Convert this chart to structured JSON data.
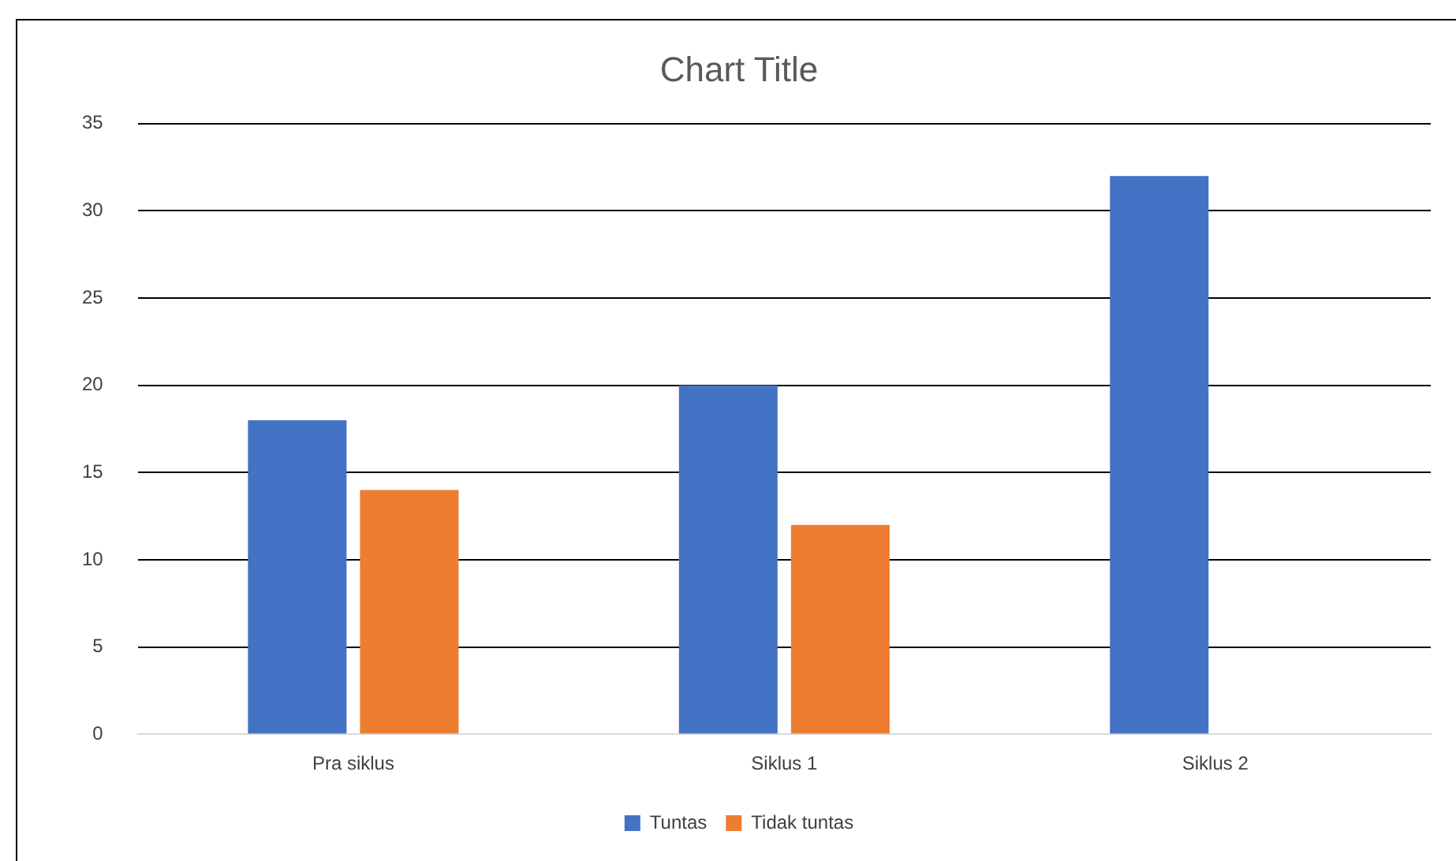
{
  "chart_data": {
    "type": "bar",
    "title": "Chart Title",
    "categories": [
      "Pra siklus",
      "Siklus 1",
      "Siklus 2"
    ],
    "series": [
      {
        "name": "Tuntas",
        "color": "#4472c4",
        "values": [
          18,
          20,
          32
        ]
      },
      {
        "name": "Tidak tuntas",
        "color": "#ed7d31",
        "values": [
          14,
          12,
          0
        ]
      }
    ],
    "ylim": [
      0,
      35
    ],
    "yticks": [
      0,
      5,
      10,
      15,
      20,
      25,
      30,
      35
    ],
    "grid": "y",
    "legend": "bottom"
  }
}
